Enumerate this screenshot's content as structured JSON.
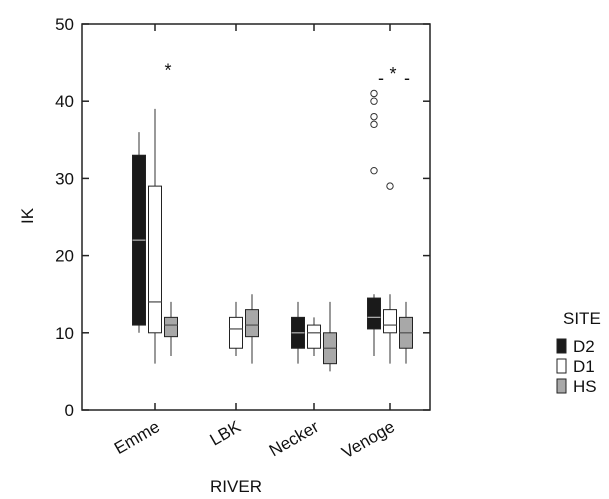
{
  "chart_data": {
    "type": "boxplot",
    "xlabel": "RIVER",
    "ylabel": "IK",
    "ylim": [
      0,
      50
    ],
    "yticks": [
      0,
      10,
      20,
      30,
      40,
      50
    ],
    "categories": [
      "Emme",
      "LBK",
      "Necker",
      "Venoge"
    ],
    "legend": {
      "title": "SITE",
      "placement": "right",
      "entries": [
        {
          "name": "D2",
          "color": "#1a1a1a"
        },
        {
          "name": "D1",
          "color": "#ffffff"
        },
        {
          "name": "HS",
          "color": "#a8a8a8"
        }
      ]
    },
    "series": [
      {
        "name": "D2",
        "color": "#1a1a1a",
        "median_color": "#aaaaaa",
        "boxes": [
          {
            "category": "Emme",
            "whisker_low": 10,
            "q1": 11,
            "median": 22,
            "q3": 33,
            "whisker_high": 36,
            "outliers": []
          },
          null,
          {
            "category": "Necker",
            "whisker_low": 6,
            "q1": 8,
            "median": 10,
            "q3": 12,
            "whisker_high": 14,
            "outliers": []
          },
          {
            "category": "Venoge",
            "whisker_low": 7,
            "q1": 10.5,
            "median": 12,
            "q3": 14.5,
            "whisker_high": 15,
            "outliers": [
              31,
              37,
              38,
              40,
              41
            ]
          }
        ]
      },
      {
        "name": "D1",
        "color": "#ffffff",
        "median_color": "#555555",
        "boxes": [
          {
            "category": "Emme",
            "whisker_low": 6,
            "q1": 10,
            "median": 14,
            "q3": 29,
            "whisker_high": 39,
            "outliers": []
          },
          {
            "category": "LBK",
            "whisker_low": 7,
            "q1": 8,
            "median": 10.5,
            "q3": 12,
            "whisker_high": 14,
            "outliers": []
          },
          {
            "category": "Necker",
            "whisker_low": 7,
            "q1": 8,
            "median": 10,
            "q3": 11,
            "whisker_high": 12,
            "outliers": []
          },
          {
            "category": "Venoge",
            "whisker_low": 6,
            "q1": 10,
            "median": 11,
            "q3": 13,
            "whisker_high": 15,
            "outliers": [
              29
            ]
          }
        ]
      },
      {
        "name": "HS",
        "color": "#a8a8a8",
        "median_color": "#555555",
        "boxes": [
          {
            "category": "Emme",
            "whisker_low": 7,
            "q1": 9.5,
            "median": 11,
            "q3": 12,
            "whisker_high": 14,
            "outliers": []
          },
          {
            "category": "LBK",
            "whisker_low": 6,
            "q1": 9.5,
            "median": 11,
            "q3": 13,
            "whisker_high": 15,
            "outliers": []
          },
          {
            "category": "Necker",
            "whisker_low": 5,
            "q1": 6,
            "median": 8,
            "q3": 10,
            "whisker_high": 14,
            "outliers": []
          },
          {
            "category": "Venoge",
            "whisker_low": 6,
            "q1": 8,
            "median": 10,
            "q3": 12,
            "whisker_high": 14,
            "outliers": []
          }
        ]
      }
    ],
    "annotations": [
      {
        "text": "*",
        "category": "Emme",
        "y": 44
      },
      {
        "text": "-",
        "category": "Venoge",
        "y": 43
      },
      {
        "text": "*",
        "category": "Venoge",
        "y": 43.5
      },
      {
        "text": "-",
        "category": "Venoge",
        "y": 43
      }
    ]
  }
}
